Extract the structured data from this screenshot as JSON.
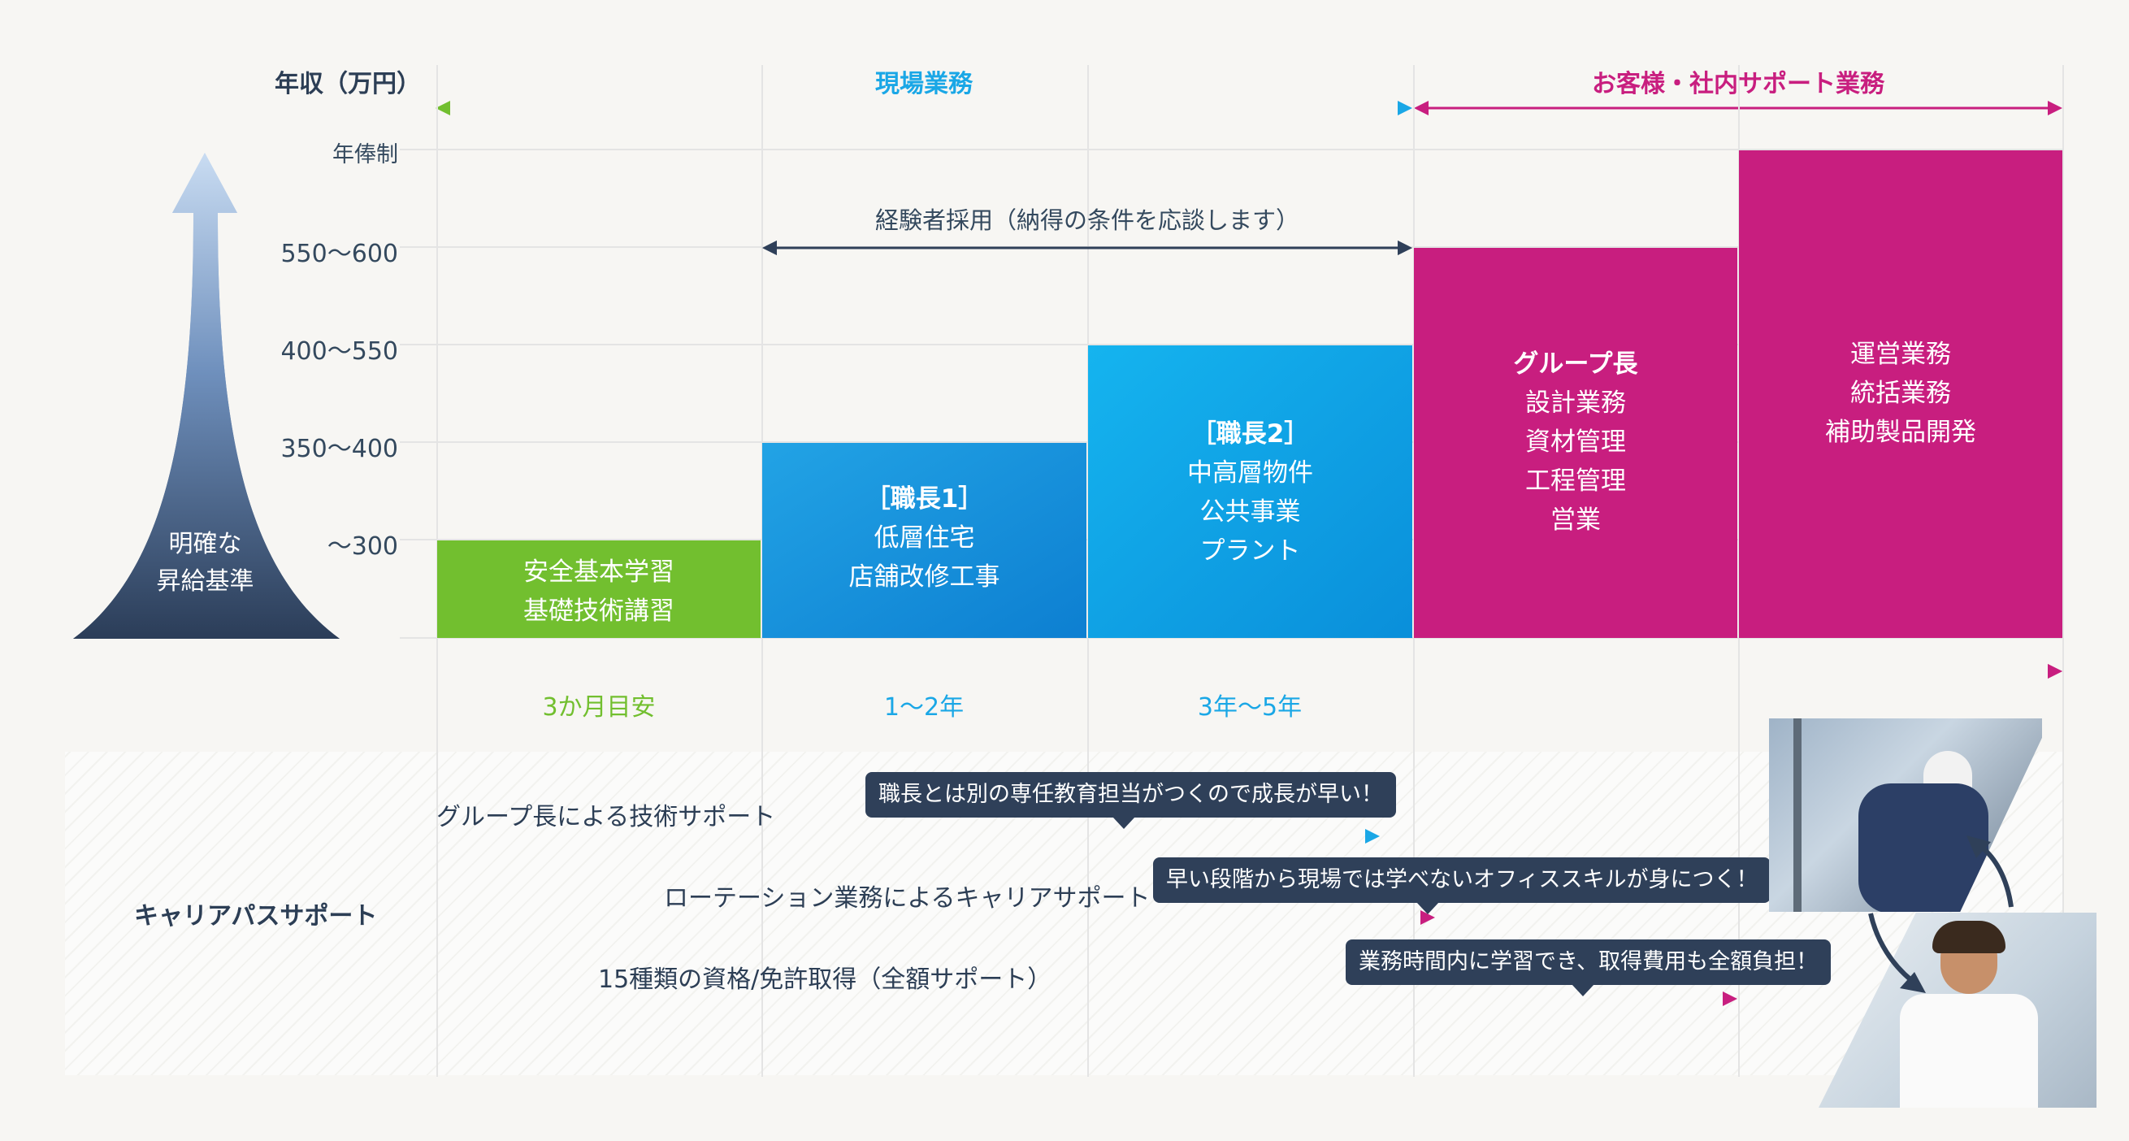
{
  "header": {
    "y_axis_title": "年収（万円）",
    "phase_field": "現場業務",
    "phase_support": "お客様・社内サポート業務"
  },
  "y_levels": [
    "年俸制",
    "550〜600",
    "400〜550",
    "350〜400",
    "〜300"
  ],
  "arrow_label": {
    "line1": "明確な",
    "line2": "昇給基準"
  },
  "experienced_hire": "経験者採用（納得の条件を応談します）",
  "bars": [
    {
      "title": "",
      "lines": [
        "安全基本学習",
        "基礎技術講習"
      ]
    },
    {
      "title": "［職長1］",
      "lines": [
        "低層住宅",
        "店舗改修工事"
      ]
    },
    {
      "title": "［職長2］",
      "lines": [
        "中高層物件",
        "公共事業",
        "プラント"
      ]
    },
    {
      "title": "グループ長",
      "lines": [
        "設計業務",
        "資材管理",
        "工程管理",
        "営業"
      ]
    },
    {
      "title": "",
      "lines": [
        "運営業務",
        "統括業務",
        "補助製品開発"
      ]
    }
  ],
  "timeline": [
    "3か月目安",
    "1〜2年",
    "3年〜5年"
  ],
  "support": {
    "label": "キャリアパスサポート",
    "items": [
      {
        "text": "グループ長による技術サポート",
        "bubble": "職長とは別の専任教育担当がつくので成長が早い！"
      },
      {
        "text": "ローテーション業務によるキャリアサポート",
        "bubble": "早い段階から現場では学べないオフィススキルが身につく！"
      },
      {
        "text": "15種類の資格/免許取得（全額サポート）",
        "bubble": "業務時間内に学習でき、取得費用も全額負担！"
      }
    ]
  },
  "colors": {
    "green": "#72bf2f",
    "blue": "#1aa7e6",
    "magenta": "#c81e7f",
    "navy": "#2f4059"
  },
  "icons": [
    "up-arrow-icon",
    "photo-worker",
    "photo-office"
  ]
}
